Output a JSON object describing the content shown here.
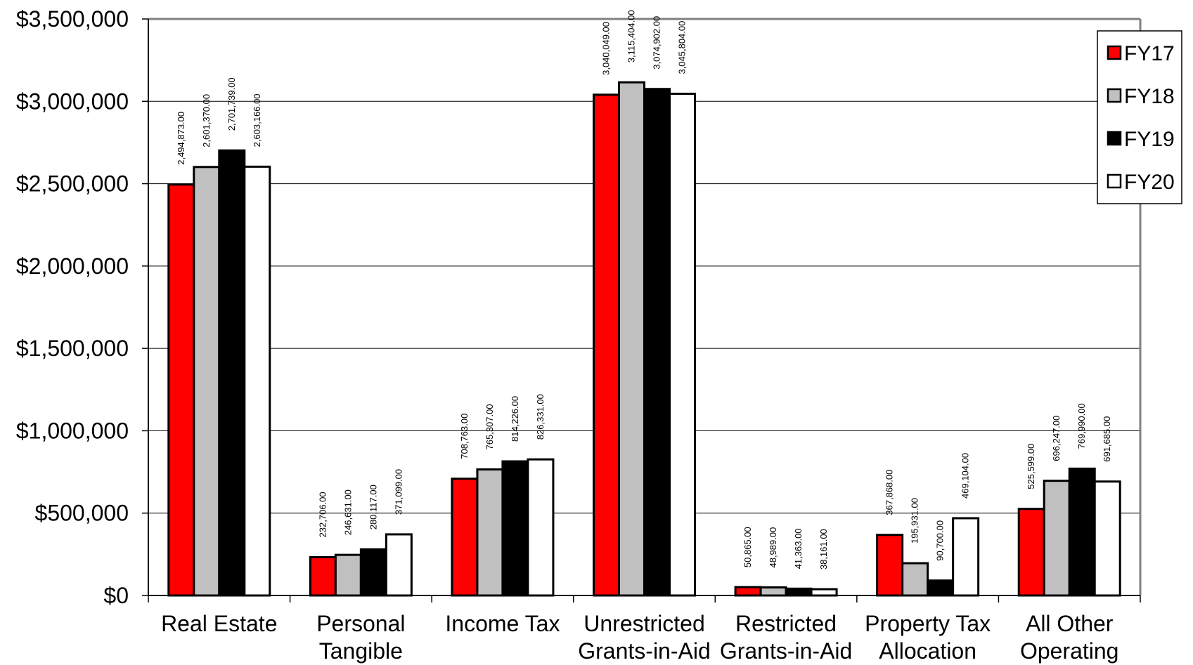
{
  "chart_data": {
    "type": "bar",
    "title": "",
    "xlabel": "",
    "ylabel": "",
    "ylim": [
      0,
      3500000
    ],
    "yticks": [
      0,
      500000,
      1000000,
      1500000,
      2000000,
      2500000,
      3000000,
      3500000
    ],
    "ytick_labels": [
      "$0",
      "$500,000",
      "$1,000,000",
      "$1,500,000",
      "$2,000,000",
      "$2,500,000",
      "$3,000,000",
      "$3,500,000"
    ],
    "grid": true,
    "legend_position": "top-right",
    "categories": [
      [
        "Real Estate"
      ],
      [
        "Personal",
        "Tangible"
      ],
      [
        "Income Tax"
      ],
      [
        "Unrestricted",
        "Grants-in-Aid"
      ],
      [
        "Restricted",
        "Grants-in-Aid"
      ],
      [
        "Property Tax",
        "Allocation"
      ],
      [
        "All Other",
        "Operating"
      ]
    ],
    "series": [
      {
        "name": "FY17",
        "color": "#ff0000",
        "values": [
          2494873,
          232706,
          708763,
          3040049,
          50865,
          367868,
          525599
        ],
        "labels": [
          "2,494,873.00",
          "232,706.00",
          "708,763.00",
          "3,040,049.00",
          "50,865.00",
          "367,868.00",
          "525,599.00"
        ]
      },
      {
        "name": "FY18",
        "color": "#c0c0c0",
        "values": [
          2601370,
          246631,
          765307,
          3115404,
          48989,
          195931,
          696247
        ],
        "labels": [
          "2,601,370.00",
          "246,631.00",
          "765,307.00",
          "3,115,404.00",
          "48,989.00",
          "195,931.00",
          "696,247.00"
        ]
      },
      {
        "name": "FY19",
        "color": "#000000",
        "values": [
          2701739,
          280117,
          814226,
          3074902,
          41363,
          90700,
          769990
        ],
        "labels": [
          "2,701,739.00",
          "280,117.00",
          "814,226.00",
          "3,074,902.00",
          "41,363.00",
          "90,700.00",
          "769,990.00"
        ]
      },
      {
        "name": "FY20",
        "color": "#ffffff",
        "values": [
          2603166,
          371099,
          826331,
          3045804,
          38161,
          469104,
          691685
        ],
        "labels": [
          "2,603,166.00",
          "371,099.00",
          "826,331.00",
          "3,045,804.00",
          "38,161.00",
          "469,104.00",
          "691,685.00"
        ]
      }
    ]
  }
}
